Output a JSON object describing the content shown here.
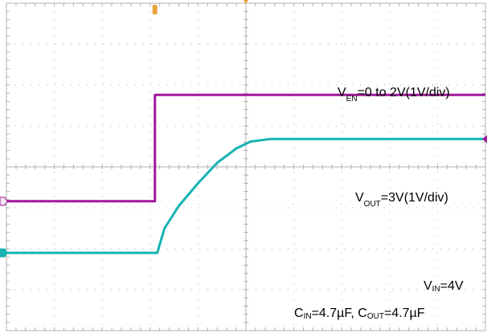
{
  "chart_data": {
    "type": "line",
    "x_divisions": 10,
    "y_divisions": 8,
    "grid": true,
    "series": [
      {
        "key": "v_en",
        "color": "#a0169b",
        "x": [
          0,
          3.1,
          3.1,
          10
        ],
        "y": [
          3.16,
          3.16,
          5.76,
          5.76
        ]
      },
      {
        "key": "v_out",
        "color": "#17b3b3",
        "x": [
          0,
          3.15,
          3.3,
          3.6,
          4.0,
          4.4,
          4.8,
          5.1,
          5.5,
          5.8,
          10
        ],
        "y": [
          1.9,
          1.9,
          2.5,
          3.05,
          3.6,
          4.1,
          4.45,
          4.62,
          4.68,
          4.68,
          4.68
        ]
      }
    ],
    "annotations": {
      "ven_v": "V",
      "ven_sub": "EN",
      "ven_rest": "=0 to 2V(1V/div)",
      "vout_v": "V",
      "vout_sub": "OUT",
      "vout_rest": "=3V(1V/div)",
      "vin_v": "V",
      "vin_sub": "IN",
      "vin_rest": "=4V",
      "cin_c": "C",
      "cin_sub": "IN",
      "cin_rest": "=4.7µF, ",
      "cout_c": "C",
      "cout_sub": "OUT",
      "cout_rest": "=4.7µF"
    },
    "colors": {
      "grid": "#b0b0b0",
      "trigger_marker": "#e8a33a",
      "ch1": "#a0169b",
      "ch2": "#17b3b3"
    }
  }
}
